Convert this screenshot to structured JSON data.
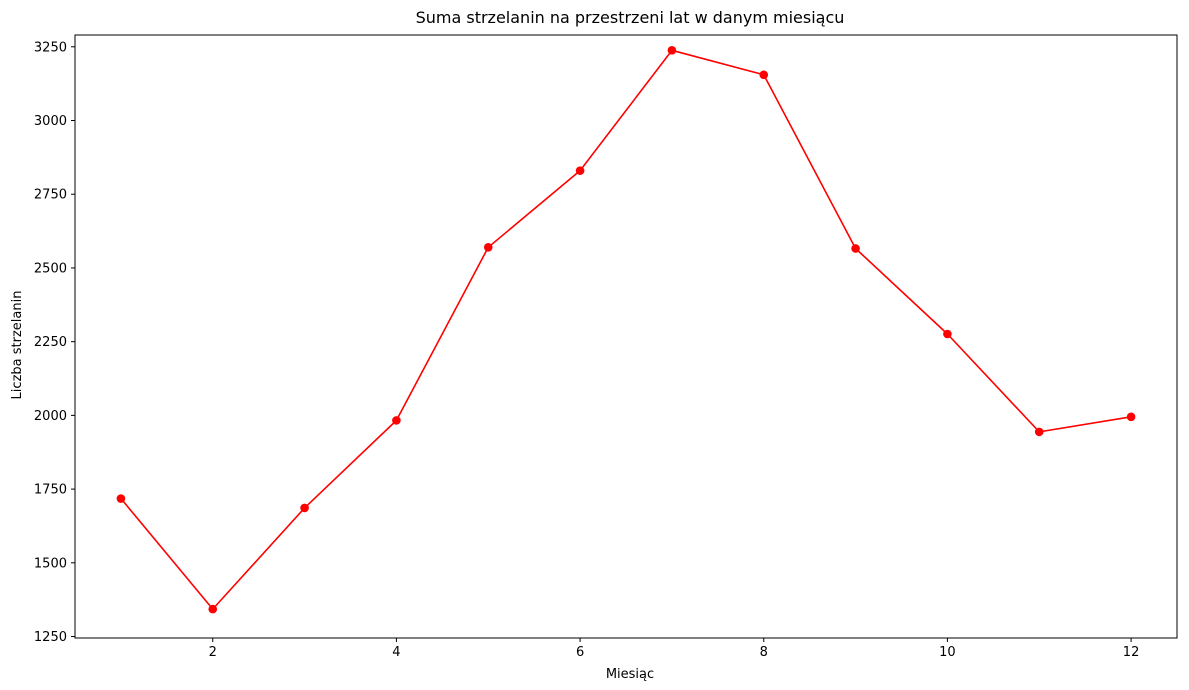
{
  "chart_data": {
    "type": "line",
    "title": "Suma strzelanin na przestrzeni lat w danym miesiącu",
    "xlabel": "Miesiąc",
    "ylabel": "Liczba strzelanin",
    "x": [
      1,
      2,
      3,
      4,
      5,
      6,
      7,
      8,
      9,
      10,
      11,
      12
    ],
    "series": [
      {
        "values": [
          1718,
          1343,
          1686,
          1983,
          2570,
          2830,
          3238,
          3155,
          2566,
          2276,
          1944,
          1995
        ],
        "color": "#ff0000",
        "marker": "circle"
      }
    ],
    "xlim": [
      0.5,
      12.5
    ],
    "ylim": [
      1245,
      3290
    ],
    "xticks": [
      2,
      4,
      6,
      8,
      10,
      12
    ],
    "yticks": [
      1250,
      1500,
      1750,
      2000,
      2250,
      2500,
      2750,
      3000,
      3250
    ],
    "grid": false,
    "legend": false
  }
}
